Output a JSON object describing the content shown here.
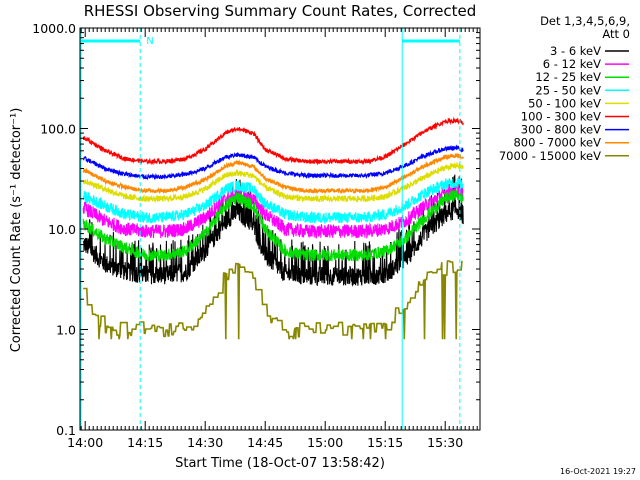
{
  "chart_data": {
    "type": "line",
    "title": "RHESSI Observing Summary Count Rates, Corrected",
    "xlabel": "Start Time (18-Oct-07 13:58:42)",
    "ylabel": "Corrected Count Rate (s⁻¹ detector⁻¹)",
    "y_scale": "log",
    "ylim": [
      0.1,
      1000
    ],
    "xlim": [
      "13:58:42",
      "15:38:42"
    ],
    "x_ticks": [
      "14:00",
      "14:15",
      "14:30",
      "14:45",
      "15:00",
      "15:15",
      "15:30"
    ],
    "y_ticks": [
      "1000.0",
      "100.0",
      "10.0",
      "1.0",
      "0.1"
    ],
    "legend": {
      "placement": "top-right",
      "header_line1": "Det 1,3,4,5,6,9,",
      "header_line2": "Att 0"
    },
    "x_times": [
      "14:00",
      "14:05",
      "14:10",
      "14:15",
      "14:20",
      "14:25",
      "14:30",
      "14:35",
      "14:38",
      "14:42",
      "14:45",
      "14:50",
      "14:55",
      "15:00",
      "15:05",
      "15:10",
      "15:15",
      "15:20",
      "15:25",
      "15:30",
      "15:33",
      "15:35"
    ],
    "series": [
      {
        "name": "3 - 6 keV",
        "color": "#000000",
        "noise": 0.22,
        "values": [
          7,
          4.5,
          3.8,
          3.5,
          3.5,
          3.7,
          6,
          12,
          15,
          11,
          5.5,
          3.6,
          3.4,
          3.4,
          3.4,
          3.4,
          3.5,
          5,
          9,
          14,
          16,
          13
        ]
      },
      {
        "name": "6 - 12 keV",
        "color": "#ff00ff",
        "noise": 0.16,
        "values": [
          16,
          12,
          10,
          9.5,
          9.5,
          10,
          13,
          20,
          22,
          20,
          14,
          10,
          9.5,
          9.5,
          9.5,
          9.5,
          10,
          12,
          17,
          23,
          25,
          22
        ]
      },
      {
        "name": "12 - 25 keV",
        "color": "#00dd00",
        "noise": 0.14,
        "values": [
          11,
          8,
          6.5,
          5.5,
          5.5,
          6,
          9,
          17,
          21,
          17,
          10,
          6,
          5.5,
          5.5,
          5.5,
          5.5,
          6,
          8,
          13,
          20,
          22,
          19
        ]
      },
      {
        "name": "25 - 50 keV",
        "color": "#00ffff",
        "noise": 0.13,
        "values": [
          21,
          17,
          14,
          13,
          13,
          14,
          17,
          25,
          27,
          25,
          18,
          14,
          13,
          13,
          13,
          13,
          14,
          17,
          23,
          28,
          29,
          27
        ]
      },
      {
        "name": "50 - 100 keV",
        "color": "#dddd00",
        "noise": 0.07,
        "values": [
          30,
          25,
          21,
          20,
          20,
          21,
          25,
          34,
          36,
          34,
          26,
          21,
          20,
          20,
          20,
          20,
          21,
          26,
          33,
          41,
          43,
          40
        ]
      },
      {
        "name": "100 - 300 keV",
        "color": "#ff0000",
        "noise": 0.05,
        "values": [
          80,
          60,
          50,
          47,
          47,
          50,
          62,
          90,
          100,
          90,
          62,
          50,
          47,
          47,
          47,
          47,
          52,
          70,
          95,
          118,
          120,
          110
        ]
      },
      {
        "name": "300 - 800 keV",
        "color": "#0000ff",
        "noise": 0.05,
        "values": [
          50,
          40,
          35,
          33,
          33,
          35,
          40,
          52,
          55,
          52,
          42,
          36,
          34,
          34,
          34,
          34,
          36,
          43,
          54,
          63,
          64,
          60
        ]
      },
      {
        "name": "800 - 7000 keV",
        "color": "#ff8800",
        "noise": 0.05,
        "values": [
          38,
          30,
          26,
          24,
          24,
          26,
          31,
          42,
          46,
          42,
          32,
          26,
          24,
          24,
          24,
          24,
          26,
          33,
          43,
          52,
          54,
          50
        ]
      },
      {
        "name": "7000 - 15000 keV",
        "color": "#888800",
        "noise": 0.0,
        "values": [
          2.2,
          1.0,
          1.0,
          1.0,
          1.0,
          1.0,
          1.6,
          3.5,
          4.0,
          3.0,
          1.3,
          1.0,
          1.0,
          1.0,
          1.0,
          1.0,
          1.0,
          2.0,
          3.2,
          4.2,
          4.5,
          3.8
        ]
      }
    ],
    "annotations": {
      "flag_label": "N",
      "flag_color": "#00ffff",
      "night_intervals": [
        [
          "13:58:42",
          "14:13:45"
        ],
        [
          "15:19:00",
          "15:33:40"
        ]
      ]
    },
    "footer_date": "16-Oct-2021 19:27"
  }
}
